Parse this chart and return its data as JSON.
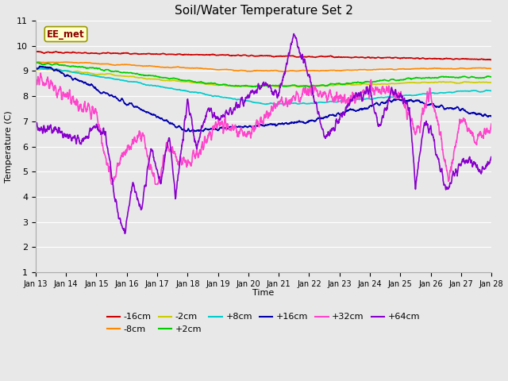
{
  "title": "Soil/Water Temperature Set 2",
  "xlabel": "Time",
  "ylabel": "Temperature (C)",
  "ylim": [
    1.0,
    11.0
  ],
  "yticks": [
    1.0,
    2.0,
    3.0,
    4.0,
    5.0,
    6.0,
    7.0,
    8.0,
    9.0,
    10.0,
    11.0
  ],
  "series": {
    "-16cm": {
      "color": "#cc0000"
    },
    "-8cm": {
      "color": "#ff8800"
    },
    "-2cm": {
      "color": "#cccc00"
    },
    "+2cm": {
      "color": "#00cc00"
    },
    "+8cm": {
      "color": "#00cccc"
    },
    "+16cm": {
      "color": "#0000aa"
    },
    "+32cm": {
      "color": "#ff44cc"
    },
    "+64cm": {
      "color": "#8800cc"
    }
  },
  "box_label": "EE_met",
  "box_bg": "#ffffcc",
  "box_border": "#999900",
  "bg_color": "#e8e8e8"
}
